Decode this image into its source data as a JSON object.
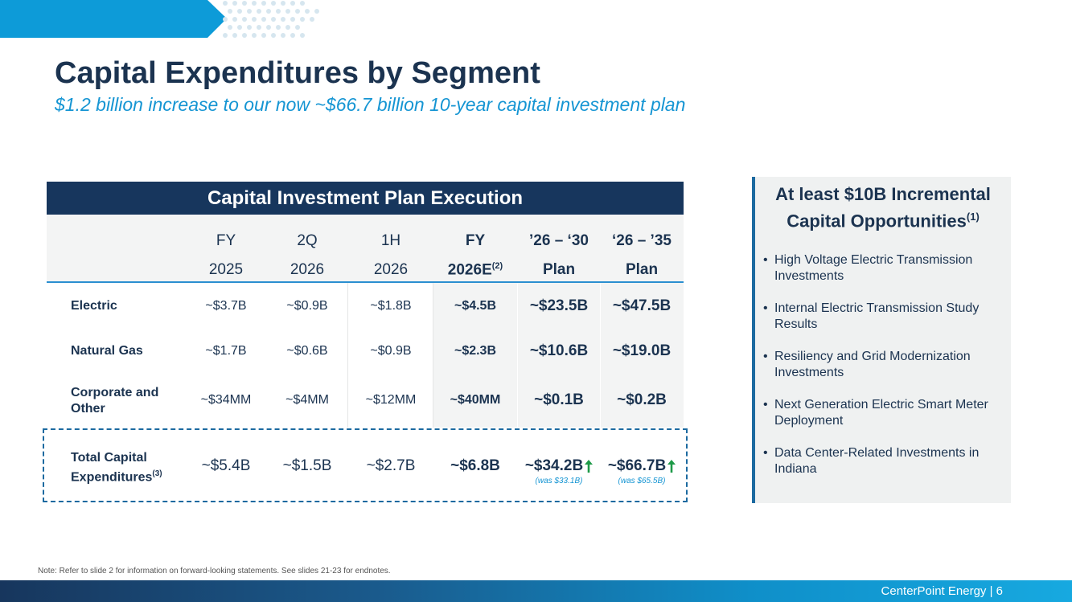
{
  "slide": {
    "title": "Capital Expenditures by Segment",
    "subtitle": "$1.2 billion increase to our now ~$66.7 billion 10-year capital investment plan"
  },
  "table": {
    "header": "Capital Investment Plan Execution",
    "columns": [
      {
        "line1": "FY",
        "line2": "2025",
        "sup": ""
      },
      {
        "line1": "2Q",
        "line2": "2026",
        "sup": ""
      },
      {
        "line1": "1H",
        "line2": "2026",
        "sup": ""
      },
      {
        "line1": "FY",
        "line2": "2026E",
        "sup": "(2)"
      },
      {
        "line1": "’26 – ‘30",
        "line2": "Plan",
        "sup": ""
      },
      {
        "line1": "‘26 – ’35",
        "line2": "Plan",
        "sup": ""
      }
    ],
    "rows": [
      {
        "label": "Electric",
        "values": [
          "~$3.7B",
          "~$0.9B",
          "~$1.8B",
          "~$4.5B",
          "~$23.5B",
          "~$47.5B"
        ]
      },
      {
        "label": "Natural Gas",
        "values": [
          "~$1.7B",
          "~$0.6B",
          "~$0.9B",
          "~$2.3B",
          "~$10.6B",
          "~$19.0B"
        ]
      },
      {
        "label_line1": "Corporate and",
        "label_line2": "Other",
        "values": [
          "~$34MM",
          "~$4MM",
          "~$12MM",
          "~$40MM",
          "~$0.1B",
          "~$0.2B"
        ]
      }
    ],
    "total": {
      "label_line1": "Total Capital",
      "label_line2": "Expenditures",
      "label_sup": "(3)",
      "values": [
        "~$5.4B",
        "~$1.5B",
        "~$2.7B",
        "~$6.8B",
        "~$34.2B",
        "~$66.7B"
      ],
      "was": [
        "",
        "",
        "",
        "",
        "(was $33.1B)",
        "(was $65.5B)"
      ]
    }
  },
  "side_panel": {
    "title_line1": "At least $10B Incremental",
    "title_line2": "Capital Opportunities",
    "title_sup": "(1)",
    "items": [
      "High Voltage Electric Transmission Investments",
      "Internal Electric Transmission Study Results",
      "Resiliency and Grid Modernization Investments",
      "Next Generation Electric Smart Meter Deployment",
      "Data Center-Related Investments in Indiana"
    ]
  },
  "note": "Note: Refer to slide 2 for information on forward-looking statements. See slides 21-23 for endnotes.",
  "footer": "CenterPoint Energy | 6",
  "colors": {
    "navy": "#17365d",
    "accent_blue": "#1595d3",
    "up_arrow_green": "#1e9a48"
  }
}
